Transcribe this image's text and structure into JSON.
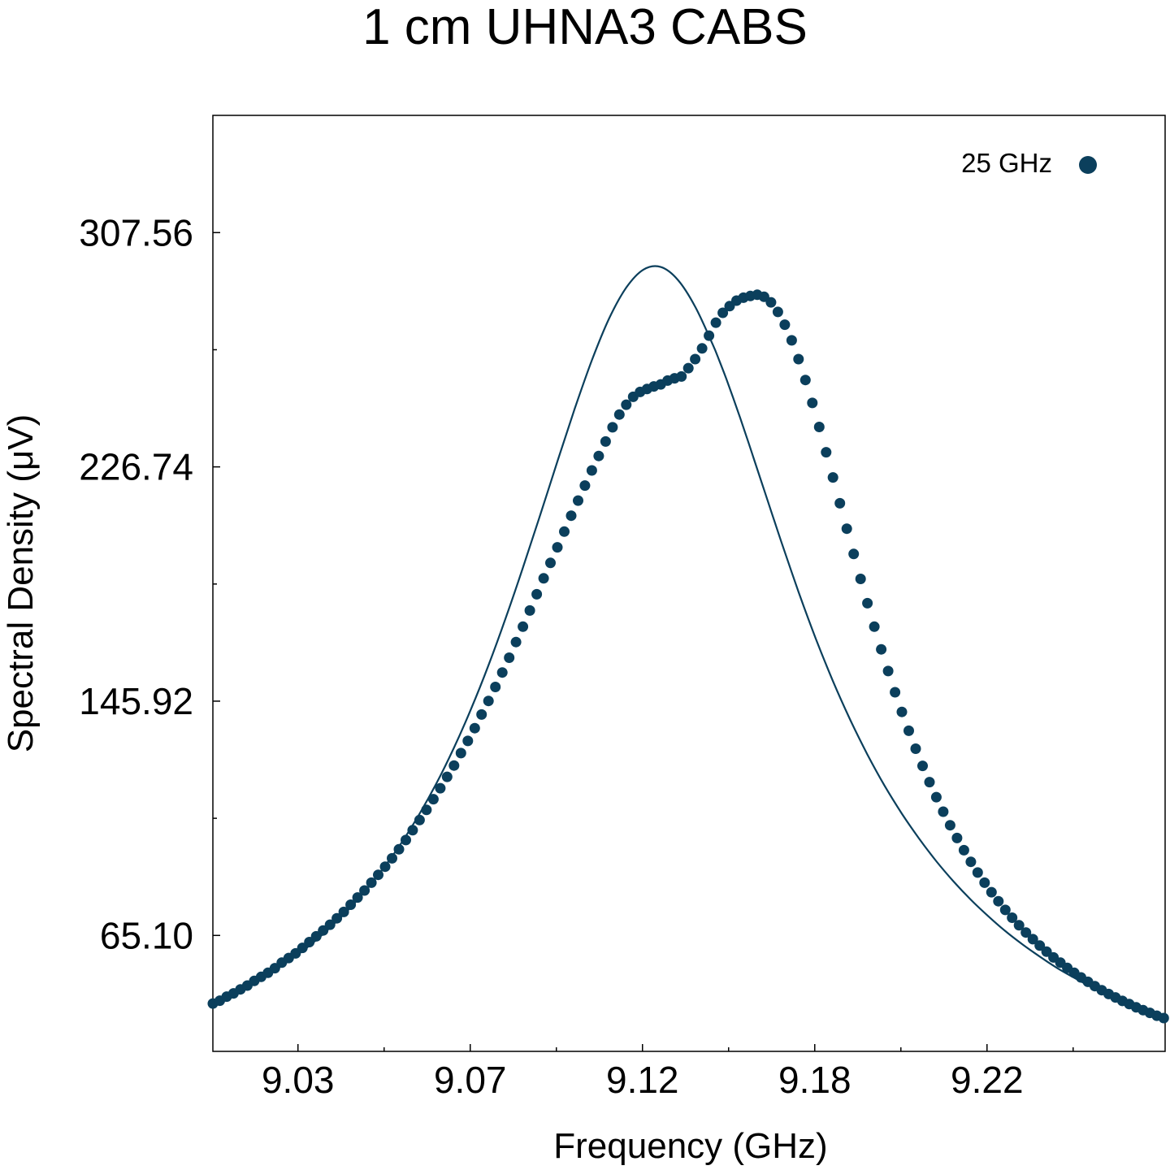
{
  "chart_data": {
    "type": "scatter",
    "title": "1 cm UHNA3 CABS",
    "xlabel": "Frequency (GHz)",
    "ylabel": "Spectral Density (μV)",
    "xlim": [
      9.0003,
      9.2767
    ],
    "ylim": [
      25.1,
      348.0
    ],
    "x_ticks": [
      {
        "value": 9.025,
        "label": "9.03"
      },
      {
        "value": 9.075,
        "label": "9.07"
      },
      {
        "value": 9.125,
        "label": "9.12"
      },
      {
        "value": 9.175,
        "label": "9.18"
      },
      {
        "value": 9.225,
        "label": "9.22"
      }
    ],
    "x_minor_ticks": [
      9.05,
      9.1,
      9.15,
      9.2,
      9.25
    ],
    "y_ticks": [
      {
        "value": 65.1,
        "label": "65.10"
      },
      {
        "value": 145.92,
        "label": "145.92"
      },
      {
        "value": 226.74,
        "label": "226.74"
      },
      {
        "value": 307.56,
        "label": "307.56"
      }
    ],
    "y_minor_ticks": [
      105.51,
      186.33,
      267.15
    ],
    "grid": false,
    "legend_position": "top-right",
    "color": "#0b3f5c",
    "series": [
      {
        "name": "25 GHz",
        "type": "scatter",
        "x": [
          9.0003,
          9.0023,
          9.0043,
          9.0063,
          9.0083,
          9.0103,
          9.0123,
          9.0143,
          9.0163,
          9.0183,
          9.0203,
          9.0223,
          9.0243,
          9.0263,
          9.0283,
          9.0303,
          9.0323,
          9.0343,
          9.0363,
          9.0383,
          9.0403,
          9.0423,
          9.0443,
          9.0463,
          9.0483,
          9.0503,
          9.0523,
          9.0543,
          9.0563,
          9.0583,
          9.0603,
          9.0623,
          9.0643,
          9.0663,
          9.0683,
          9.0703,
          9.0723,
          9.0743,
          9.0763,
          9.0783,
          9.0803,
          9.0823,
          9.0843,
          9.0863,
          9.0883,
          9.0903,
          9.0923,
          9.0943,
          9.0963,
          9.0983,
          9.1003,
          9.1023,
          9.1043,
          9.1063,
          9.1083,
          9.1103,
          9.1123,
          9.1143,
          9.1163,
          9.1183,
          9.1203,
          9.1223,
          9.1243,
          9.1263,
          9.1283,
          9.1303,
          9.1323,
          9.1343,
          9.1363,
          9.1383,
          9.1403,
          9.1423,
          9.1443,
          9.1463,
          9.1483,
          9.1503,
          9.1523,
          9.1543,
          9.1563,
          9.1583,
          9.1603,
          9.1623,
          9.1643,
          9.1663,
          9.1683,
          9.1703,
          9.1723,
          9.1743,
          9.1763,
          9.1783,
          9.1803,
          9.1823,
          9.1843,
          9.1863,
          9.1883,
          9.1903,
          9.1923,
          9.1943,
          9.1963,
          9.1983,
          9.2003,
          9.2023,
          9.2043,
          9.2063,
          9.2083,
          9.2103,
          9.2123,
          9.2143,
          9.2163,
          9.2183,
          9.2203,
          9.2223,
          9.2243,
          9.2263,
          9.2283,
          9.2303,
          9.2323,
          9.2343,
          9.2363,
          9.2383,
          9.2403,
          9.2423,
          9.2443,
          9.2463,
          9.2483,
          9.2503,
          9.2523,
          9.2543,
          9.2563,
          9.2583,
          9.2603,
          9.2623,
          9.2643,
          9.2663,
          9.2683,
          9.2703,
          9.2723,
          9.2743,
          9.2763
        ],
        "y": [
          41.6,
          42.6,
          44.0,
          45.1,
          46.5,
          47.8,
          49.4,
          50.8,
          52.2,
          53.8,
          55.7,
          57.3,
          58.9,
          60.8,
          62.8,
          64.8,
          66.8,
          68.8,
          71.0,
          73.2,
          75.7,
          78.2,
          80.6,
          83.3,
          86.0,
          88.8,
          91.7,
          94.8,
          98.0,
          101.4,
          104.9,
          108.4,
          112.1,
          115.9,
          119.8,
          123.7,
          128.0,
          132.2,
          136.6,
          141.3,
          146.0,
          150.8,
          155.8,
          160.9,
          166.3,
          171.6,
          177.2,
          182.8,
          188.3,
          193.6,
          199.0,
          204.4,
          209.9,
          215.1,
          220.3,
          225.5,
          230.5,
          235.5,
          240.4,
          244.8,
          248.2,
          250.9,
          252.6,
          253.6,
          254.5,
          255.2,
          256.5,
          257.3,
          257.9,
          260.8,
          263.9,
          267.6,
          272.0,
          276.5,
          279.9,
          282.2,
          284.1,
          285.1,
          285.7,
          286.1,
          285.4,
          283.5,
          280.2,
          275.8,
          270.4,
          263.9,
          256.7,
          248.8,
          240.5,
          231.8,
          223.1,
          214.2,
          205.4,
          196.7,
          188.1,
          179.7,
          171.6,
          163.8,
          156.3,
          149.0,
          142.2,
          135.7,
          129.5,
          123.6,
          118.0,
          112.8,
          107.8,
          103.1,
          98.7,
          94.5,
          90.5,
          86.8,
          83.3,
          80.0,
          76.9,
          73.9,
          71.2,
          68.6,
          66.1,
          63.8,
          61.6,
          59.5,
          57.5,
          55.7,
          53.9,
          52.2,
          50.6,
          49.1,
          47.6,
          46.2,
          44.9,
          43.7,
          42.5,
          41.4,
          40.3,
          39.3,
          38.4,
          37.4,
          36.6
        ]
      },
      {
        "type": "line",
        "x": [
          9.0003,
          9.0053,
          9.0103,
          9.0153,
          9.0203,
          9.0253,
          9.0303,
          9.0353,
          9.0403,
          9.0453,
          9.0503,
          9.0553,
          9.0603,
          9.0653,
          9.0703,
          9.0753,
          9.0803,
          9.0853,
          9.0903,
          9.0953,
          9.1003,
          9.1053,
          9.1103,
          9.1153,
          9.1203,
          9.1253,
          9.1303,
          9.1353,
          9.1403,
          9.1453,
          9.1473,
          9.1493,
          9.1513,
          9.1533,
          9.1553,
          9.1573,
          9.1593,
          9.1613,
          9.1633,
          9.1653,
          9.1703,
          9.1753,
          9.1803,
          9.1853,
          9.1903,
          9.1953,
          9.2003,
          9.2053,
          9.2103,
          9.2153,
          9.2203,
          9.2253,
          9.2303,
          9.2353,
          9.2403,
          9.2453,
          9.2503,
          9.2553,
          9.2603,
          9.2653,
          9.2703,
          9.2767
        ],
        "y": [
          41.6,
          44.3,
          47.4,
          50.8,
          54.6,
          58.8,
          63.5,
          68.9,
          74.8,
          81.5,
          89.1,
          97.5,
          107.1,
          117.8,
          129.9,
          143.4,
          158.3,
          174.6,
          192.0,
          210.1,
          228.6,
          246.7,
          263.5,
          277.9,
          288.6,
          294.8,
          295.7,
          291.2,
          282.0,
          269.2,
          263.4,
          257.2,
          250.6,
          243.8,
          236.8,
          229.6,
          222.4,
          215.2,
          208.0,
          200.9,
          183.6,
          167.5,
          152.8,
          139.5,
          127.5,
          116.7,
          107.1,
          98.5,
          90.7,
          83.7,
          77.4,
          71.8,
          66.6,
          62.0,
          57.8,
          53.9,
          50.5,
          47.3,
          44.3,
          41.7,
          39.2,
          36.4
        ]
      }
    ]
  }
}
